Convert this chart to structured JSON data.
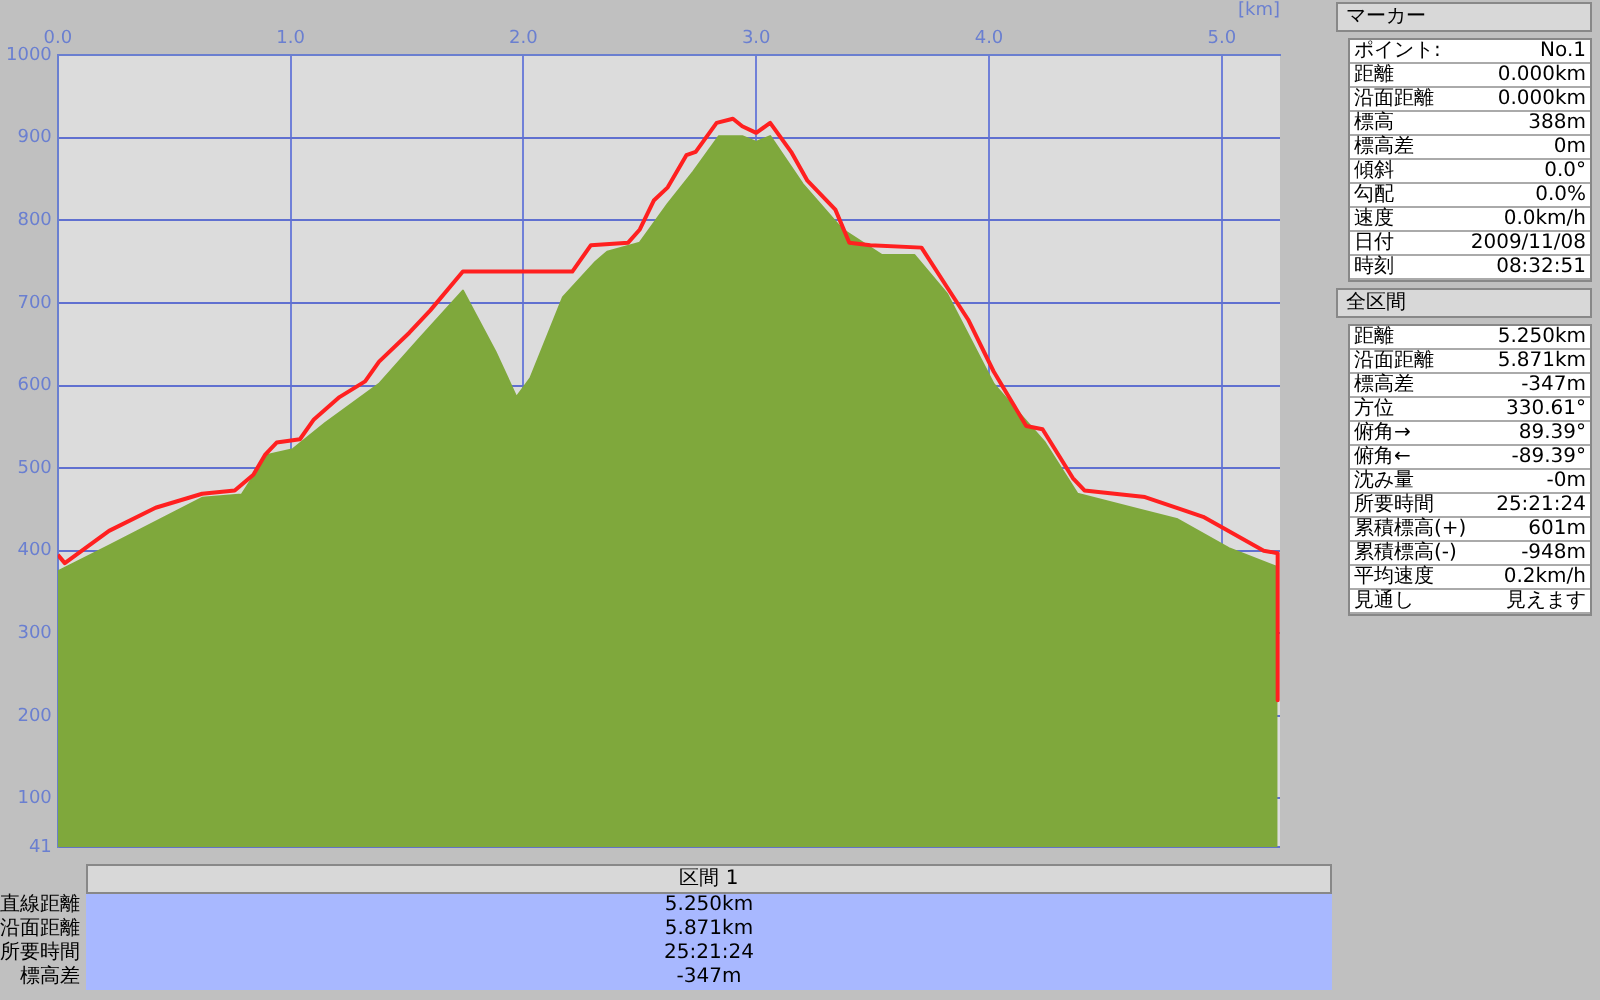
{
  "chart_data": {
    "type": "area",
    "xlabel": "[km]",
    "xlim": [
      0,
      5.25
    ],
    "xticks": [
      {
        "value": 0,
        "label": "0.0"
      },
      {
        "value": 1,
        "label": "1.0"
      },
      {
        "value": 2,
        "label": "2.0"
      },
      {
        "value": 3,
        "label": "3.0"
      },
      {
        "value": 4,
        "label": "4.0"
      },
      {
        "value": 5,
        "label": "5.0"
      }
    ],
    "ylim": [
      41,
      1000
    ],
    "yticks": [
      41,
      100,
      200,
      300,
      400,
      500,
      600,
      700,
      800,
      900,
      1000
    ],
    "grid": true,
    "legend": false,
    "series": [
      {
        "color": "#7fa83c",
        "x": [
          0,
          0.22,
          0.62,
          0.79,
          0.9,
          1.01,
          1.15,
          1.38,
          1.55,
          1.74,
          1.88,
          1.97,
          2.03,
          2.17,
          2.31,
          2.36,
          2.5,
          2.62,
          2.73,
          2.84,
          2.94,
          3.0,
          3.06,
          3.2,
          3.37,
          3.54,
          3.68,
          3.82,
          4.02,
          4.24,
          4.38,
          4.81,
          5.03,
          5.24
        ],
        "values": [
          375,
          406,
          464,
          468,
          516,
          523,
          555,
          602,
          656,
          715,
          641,
          586,
          609,
          707,
          750,
          762,
          773,
          820,
          859,
          902,
          902,
          895,
          902,
          844,
          789,
          758,
          758,
          711,
          602,
          531,
          469,
          438,
          403,
          380
        ]
      },
      {
        "type": "line",
        "color": "#ff2020",
        "x": [
          0,
          0.03,
          0.22,
          0.42,
          0.62,
          0.76,
          0.84,
          0.89,
          0.94,
          1.04,
          1.1,
          1.21,
          1.32,
          1.38,
          1.51,
          1.6,
          1.74,
          2.21,
          2.29,
          2.45,
          2.5,
          2.56,
          2.62,
          2.7,
          2.74,
          2.83,
          2.9,
          2.94,
          3.0,
          3.06,
          3.15,
          3.22,
          3.34,
          3.4,
          3.49,
          3.71,
          3.82,
          3.91,
          4.02,
          4.16,
          4.23,
          4.36,
          4.41,
          4.67,
          4.92,
          5.18,
          5.24,
          5.24
        ],
        "values": [
          395,
          385,
          424,
          452,
          469,
          473,
          492,
          516,
          531,
          535,
          559,
          586,
          605,
          629,
          664,
          691,
          738,
          738,
          770,
          773,
          789,
          824,
          840,
          879,
          883,
          918,
          923,
          914,
          906,
          918,
          883,
          848,
          813,
          773,
          770,
          767,
          719,
          680,
          617,
          551,
          547,
          488,
          473,
          465,
          441,
          400,
          397,
          219
        ]
      }
    ],
    "annotations": [
      "マーカー",
      "ポイント:",
      "No.1",
      "距離",
      "0.000km",
      "沿面距離",
      "0.000km",
      "標高",
      "388m",
      "標高差",
      "0m",
      "傾斜",
      "0.0°",
      "勾配",
      "0.0%",
      "速度",
      "0.0km/h",
      "日付",
      "2009/11/08",
      "時刻",
      "08:32:51",
      "全区間",
      "距離",
      "5.250km",
      "沿面距離",
      "5.871km",
      "標高差",
      "-347m",
      "方位",
      "330.61°",
      "俯角→",
      "89.39°",
      "俯角←",
      "-89.39°",
      "沈み量",
      "-0m",
      "所要時間",
      "25:21:24",
      "累積標高(+)",
      "601m",
      "累積標高(-)",
      "-948m",
      "平均速度",
      "0.2km/h",
      "見通し",
      "見えます",
      "区間 1",
      "直線距離",
      "5.250km",
      "沿面距離",
      "5.871km",
      "所要時間",
      "25:21:24",
      "標高差",
      "-347m"
    ]
  }
}
